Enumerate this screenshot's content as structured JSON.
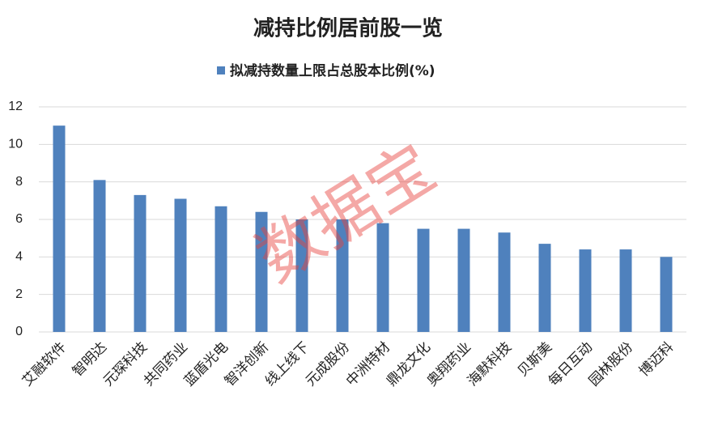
{
  "chart_data": {
    "type": "bar",
    "title": "减持比例居前股一览",
    "watermark": "数据宝",
    "categories": [
      "艾融软件",
      "智明达",
      "元琛科技",
      "共同药业",
      "蓝盾光电",
      "智洋创新",
      "线上线下",
      "元成股份",
      "中洲特材",
      "鼎龙文化",
      "奥翔药业",
      "海默科技",
      "贝斯美",
      "每日互动",
      "园林股份",
      "博迈科"
    ],
    "series": [
      {
        "name": "拟减持数量上限占总股本比例(%)",
        "color": "#4f81bd",
        "values": [
          11.0,
          8.1,
          7.3,
          7.1,
          6.7,
          6.4,
          6.0,
          6.0,
          5.8,
          5.5,
          5.5,
          5.3,
          4.7,
          4.4,
          4.4,
          4.0
        ]
      }
    ],
    "ylim": [
      0,
      12
    ],
    "yticks": [
      0,
      2,
      4,
      6,
      8,
      10,
      12
    ],
    "grid": true
  }
}
